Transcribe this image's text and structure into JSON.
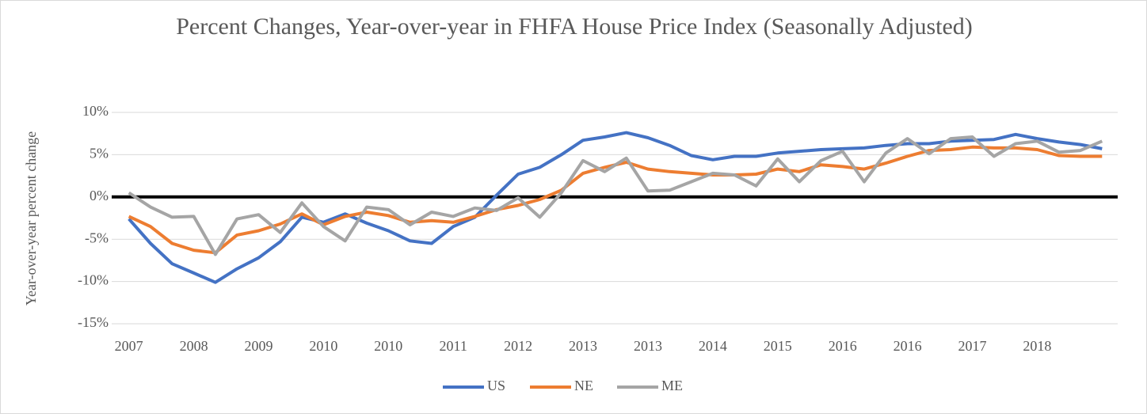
{
  "chart_data": {
    "type": "line",
    "title": "Percent Changes, Year-over-year  in FHFA House Price Index (Seasonally Adjusted)",
    "y_label": "Year-over-year percent change",
    "categories": [
      "2007",
      null,
      null,
      "2008",
      null,
      null,
      "2009",
      null,
      null,
      "2010",
      null,
      null,
      "2010",
      null,
      null,
      "2011",
      null,
      null,
      "2012",
      null,
      null,
      "2013",
      null,
      null,
      "2013",
      null,
      null,
      "2014",
      null,
      null,
      "2015",
      null,
      null,
      "2016",
      null,
      null,
      "2016",
      null,
      null,
      "2017",
      null,
      null,
      "2018",
      null,
      null,
      null
    ],
    "series": [
      {
        "name": "US",
        "color": "#4472c4",
        "values": [
          -2.6,
          -5.5,
          -7.9,
          -9.0,
          -10.1,
          -8.5,
          -7.2,
          -5.3,
          -2.4,
          -3.0,
          -2.0,
          -3.1,
          -4.0,
          -5.2,
          -5.5,
          -3.5,
          -2.4,
          0.2,
          2.7,
          3.5,
          5.0,
          6.7,
          7.1,
          7.6,
          7.0,
          6.1,
          4.9,
          4.4,
          4.8,
          4.8,
          5.2,
          5.4,
          5.6,
          5.7,
          5.8,
          6.1,
          6.3,
          6.3,
          6.6,
          6.7,
          6.8,
          7.4,
          6.9,
          6.5,
          6.2,
          5.7
        ]
      },
      {
        "name": "NE",
        "color": "#ed7d31",
        "values": [
          -2.3,
          -3.5,
          -5.5,
          -6.3,
          -6.6,
          -4.5,
          -4.0,
          -3.2,
          -2.0,
          -3.3,
          -2.3,
          -1.8,
          -2.2,
          -3.0,
          -2.8,
          -3.0,
          -2.3,
          -1.5,
          -1.0,
          -0.3,
          0.8,
          2.8,
          3.5,
          4.1,
          3.3,
          3.0,
          2.8,
          2.6,
          2.6,
          2.7,
          3.3,
          3.0,
          3.8,
          3.6,
          3.3,
          4.0,
          4.8,
          5.5,
          5.6,
          5.9,
          5.8,
          5.8,
          5.6,
          4.9,
          4.8,
          4.8
        ]
      },
      {
        "name": "ME",
        "color": "#a5a5a5",
        "values": [
          0.5,
          -1.2,
          -2.4,
          -2.3,
          -6.8,
          -2.6,
          -2.1,
          -4.2,
          -0.7,
          -3.5,
          -5.2,
          -1.2,
          -1.5,
          -3.3,
          -1.8,
          -2.3,
          -1.3,
          -1.6,
          -0.1,
          -2.4,
          0.5,
          4.3,
          3.0,
          4.6,
          0.7,
          0.8,
          1.8,
          2.8,
          2.6,
          1.3,
          4.5,
          1.8,
          4.3,
          5.4,
          1.8,
          5.2,
          6.9,
          5.1,
          6.9,
          7.1,
          4.8,
          6.3,
          6.6,
          5.3,
          5.5,
          6.6
        ]
      }
    ],
    "ylim": [
      -15,
      10
    ],
    "yticks": [
      {
        "value": -15,
        "label": "-15%"
      },
      {
        "value": -10,
        "label": "-10%"
      },
      {
        "value": -5,
        "label": "-5%"
      },
      {
        "value": 0,
        "label": "0%"
      },
      {
        "value": 5,
        "label": "5%"
      },
      {
        "value": 10,
        "label": "10%"
      }
    ],
    "grid": true,
    "legend": "bottom"
  }
}
